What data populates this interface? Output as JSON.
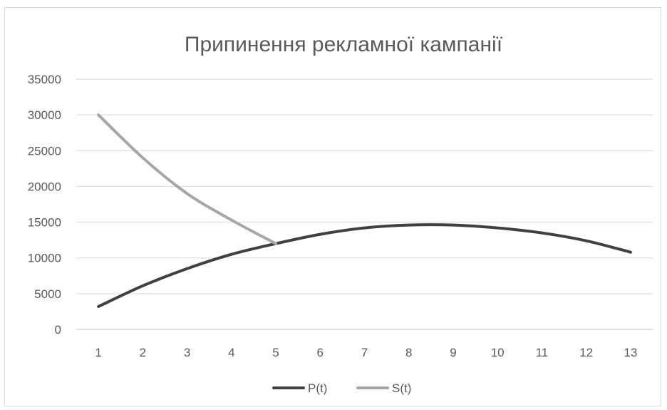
{
  "chart_data": {
    "type": "line",
    "title": "Припинення рекламної кампанії",
    "xlabel": "",
    "ylabel": "",
    "categories": [
      "1",
      "2",
      "3",
      "4",
      "5",
      "6",
      "7",
      "8",
      "9",
      "10",
      "11",
      "12",
      "13"
    ],
    "ylim": [
      0,
      35000
    ],
    "yticks": [
      0,
      5000,
      10000,
      15000,
      20000,
      25000,
      30000,
      35000
    ],
    "grid": true,
    "legend": "bottom",
    "series": [
      {
        "name": "P(t)",
        "color": "#404040",
        "values": [
          3200,
          6100,
          8500,
          10500,
          12000,
          13300,
          14200,
          14600,
          14600,
          14200,
          13500,
          12400,
          10800
        ]
      },
      {
        "name": "S(t)",
        "color": "#a6a6a6",
        "values": [
          30000,
          24000,
          19000,
          15300,
          12000,
          null,
          null,
          null,
          null,
          null,
          null,
          null,
          null
        ]
      }
    ]
  }
}
